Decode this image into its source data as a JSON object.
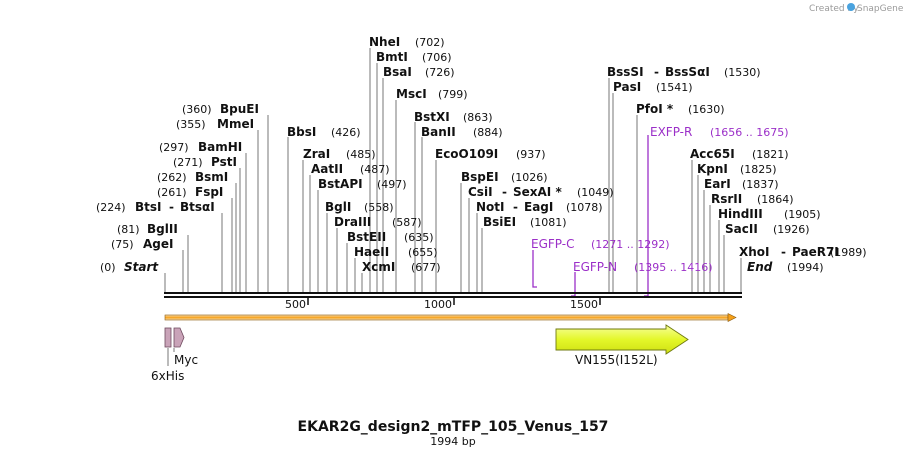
{
  "app": {
    "credit": "Created by",
    "brand": "SnapGene"
  },
  "map": {
    "title": "EKAR2G_design2_mTFP_105_Venus_157",
    "length_label": "1994 bp",
    "length": 1994,
    "ticks": [
      {
        "label": "500",
        "value": 500
      },
      {
        "label": "1000",
        "value": 1000
      },
      {
        "label": "1500",
        "value": 1500
      }
    ]
  },
  "sites": [
    {
      "name": "NheI",
      "pos": "(702)"
    },
    {
      "name": "BmtI",
      "pos": "(706)"
    },
    {
      "name": "BsaI",
      "pos": "(726)"
    },
    {
      "name": "MscI",
      "pos": "(799)"
    },
    {
      "name": "BstXI",
      "pos": "(863)"
    },
    {
      "name": "BanII",
      "pos": "(884)"
    },
    {
      "name": "EcoO109I",
      "pos": "(937)"
    },
    {
      "name": "BspEI",
      "pos": "(1026)"
    },
    {
      "name": "CsiI",
      "name2": "SexAI *",
      "pos": "(1049)"
    },
    {
      "name": "NotI",
      "name2": "EagI",
      "pos": "(1078)"
    },
    {
      "name": "BsiEI",
      "pos": "(1081)"
    },
    {
      "name": "BssSI",
      "name2": "BssSαI",
      "pos": "(1530)"
    },
    {
      "name": "PasI",
      "pos": "(1541)"
    },
    {
      "name": "PfoI *",
      "pos": "(1630)"
    },
    {
      "name": "Acc65I",
      "pos": "(1821)"
    },
    {
      "name": "KpnI",
      "pos": "(1825)"
    },
    {
      "name": "EarI",
      "pos": "(1837)"
    },
    {
      "name": "RsrII",
      "pos": "(1864)"
    },
    {
      "name": "HindIII",
      "pos": "(1905)"
    },
    {
      "name": "SacII",
      "pos": "(1926)"
    },
    {
      "name": "XhoI",
      "name2": "PaeR7I",
      "pos": "(1989)"
    },
    {
      "name": "BpuEI",
      "pos": "(360)"
    },
    {
      "name": "MmeI",
      "pos": "(355)"
    },
    {
      "name": "BamHI",
      "pos": "(297)"
    },
    {
      "name": "PstI",
      "pos": "(271)"
    },
    {
      "name": "BsmI",
      "pos": "(262)"
    },
    {
      "name": "FspI",
      "pos": "(261)"
    },
    {
      "name": "BtsI",
      "name2": "BtsαI",
      "pos": "(224)"
    },
    {
      "name": "BglII",
      "pos": "(81)"
    },
    {
      "name": "AgeI",
      "pos": "(75)"
    },
    {
      "name": "BbsI",
      "pos": "(426)"
    },
    {
      "name": "ZraI",
      "pos": "(485)"
    },
    {
      "name": "AatII",
      "pos": "(487)"
    },
    {
      "name": "BstAPI",
      "pos": "(497)"
    },
    {
      "name": "BglI",
      "pos": "(558)"
    },
    {
      "name": "DraIII",
      "pos": "(587)"
    },
    {
      "name": "BstEII",
      "pos": "(635)"
    },
    {
      "name": "HaeII",
      "pos": "(655)"
    },
    {
      "name": "XcmI",
      "pos": "(677)"
    }
  ],
  "ends": [
    {
      "name": "Start",
      "pos": "(0)"
    },
    {
      "name": "End",
      "pos": "(1994)"
    }
  ],
  "primers": [
    {
      "name": "EXFP-R",
      "range": "(1656 .. 1675)",
      "start": 1656,
      "end": 1675
    },
    {
      "name": "EGFP-C",
      "range": "(1271 .. 1292)",
      "start": 1271,
      "end": 1292
    },
    {
      "name": "EGFP-N",
      "range": "(1395 .. 1416)",
      "start": 1395,
      "end": 1416
    }
  ],
  "features": [
    {
      "name": "6xHis",
      "start": 1,
      "end": 18,
      "color": "#c9a3b8"
    },
    {
      "name": "Myc",
      "start": 30,
      "end": 60,
      "color": "#c9a3b8"
    },
    {
      "name": "VN155(I152L)",
      "start": 1350,
      "end": 1815,
      "color": "#e4f72a"
    }
  ],
  "colors": {
    "primer": "#9b2fc8",
    "orf": "#f5a019",
    "backbone": "#111111"
  }
}
